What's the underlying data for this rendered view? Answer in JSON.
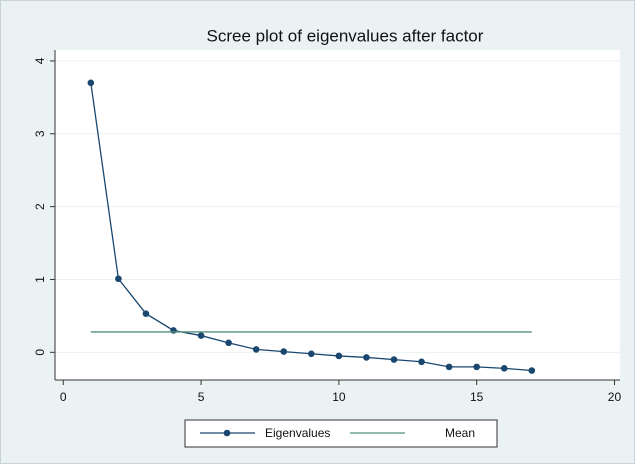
{
  "chart_data": {
    "type": "line",
    "title": "Scree plot of eigenvalues after factor",
    "series": [
      {
        "name": "Eigenvalues",
        "color": "#1a476f",
        "marker": "circle",
        "x": [
          1,
          2,
          3,
          4,
          5,
          6,
          7,
          8,
          9,
          10,
          11,
          12,
          13,
          14,
          15,
          16,
          17
        ],
        "values": [
          3.7,
          1.01,
          0.53,
          0.3,
          0.23,
          0.13,
          0.04,
          0.01,
          -0.02,
          -0.05,
          -0.07,
          -0.1,
          -0.13,
          -0.2,
          -0.2,
          -0.22,
          -0.25
        ]
      },
      {
        "name": "Mean",
        "color": "#55917f",
        "marker": "none",
        "x": [
          1,
          17
        ],
        "values": [
          0.28,
          0.28
        ]
      }
    ],
    "xlim": [
      -0.3,
      20.2
    ],
    "xticks": [
      0,
      5,
      10,
      15,
      20
    ],
    "ylim": [
      -0.38,
      4.15
    ],
    "yticks": [
      0,
      1,
      2,
      3,
      4
    ],
    "grid": true,
    "legend": "bottom"
  }
}
